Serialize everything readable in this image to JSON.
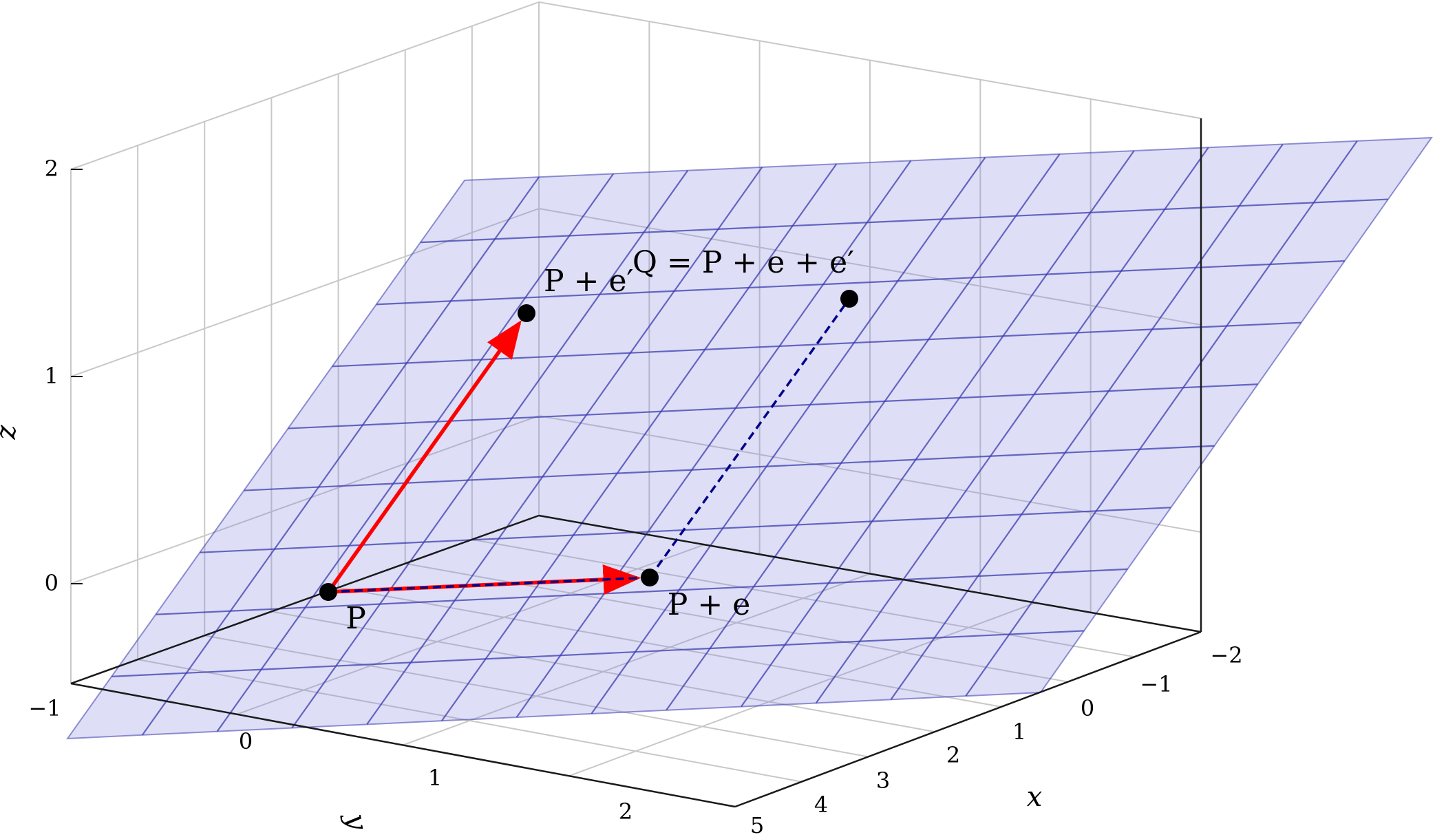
{
  "chart_data": {
    "type": "surface3d",
    "title": "",
    "xlabel": "x",
    "ylabel": "y",
    "zlabel": "z",
    "x_ticks": [
      "−2",
      "−1",
      "0",
      "1",
      "2",
      "3",
      "4",
      "5"
    ],
    "y_ticks": [
      "−1",
      "0",
      "1",
      "2"
    ],
    "z_ticks": [
      "0",
      "1",
      "2"
    ],
    "grid": true,
    "plane": {
      "color": "#7b7bdd",
      "lines_color": "#3b3bb0",
      "grid_lines_u": 13,
      "grid_lines_v": 9
    },
    "points": [
      {
        "name": "P",
        "label": "P"
      },
      {
        "name": "P+e",
        "label": "P + e"
      },
      {
        "name": "P+e'",
        "label": "P + e′"
      },
      {
        "name": "Q",
        "label": "Q = P + e + e′"
      }
    ],
    "vectors": [
      {
        "from": "P",
        "to": "P+e",
        "color": "#ff0000",
        "style": "arrow"
      },
      {
        "from": "P",
        "to": "P+e'",
        "color": "#ff0000",
        "style": "arrow"
      },
      {
        "from": "P",
        "to": "P+e",
        "color": "#00008b",
        "style": "dashed"
      },
      {
        "from": "P+e",
        "to": "Q",
        "color": "#00008b",
        "style": "dashed"
      }
    ]
  }
}
